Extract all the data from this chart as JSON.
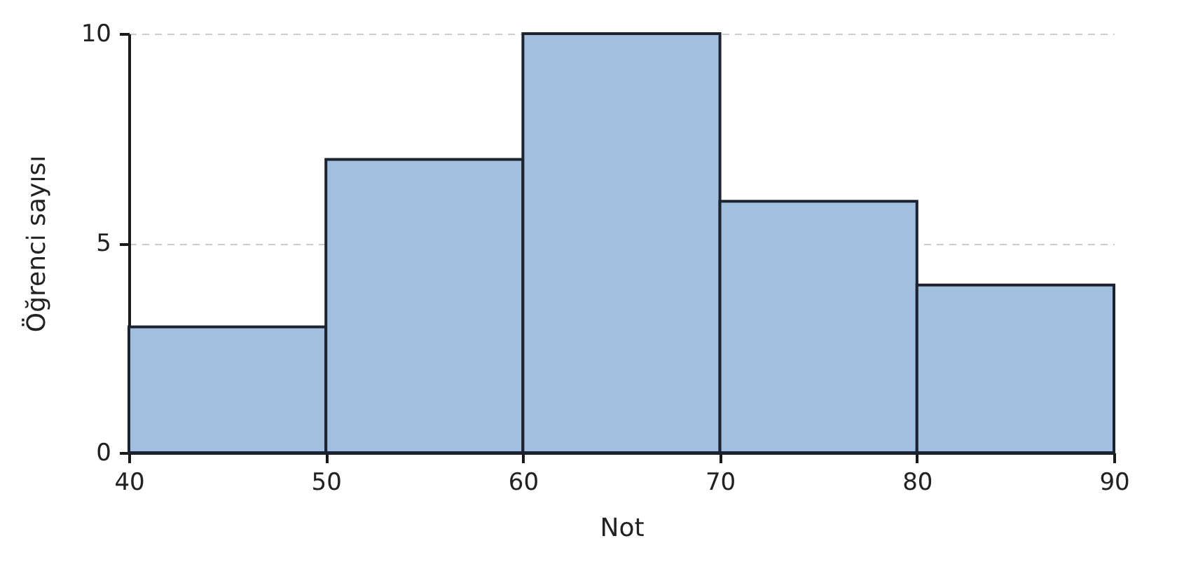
{
  "chart_data": {
    "type": "histogram",
    "xlabel": "Not",
    "ylabel": "Öğrenci sayısı",
    "bins": [
      40,
      50,
      60,
      70,
      80,
      90
    ],
    "values": [
      3,
      7,
      10,
      6,
      4
    ],
    "color": "#a3bfdf",
    "xlim": [
      40,
      90
    ],
    "xticks": [
      40,
      50,
      60,
      70,
      80,
      90
    ],
    "ylim": [
      0,
      10
    ],
    "yticks": [
      0,
      5,
      10
    ],
    "grid": "y"
  }
}
